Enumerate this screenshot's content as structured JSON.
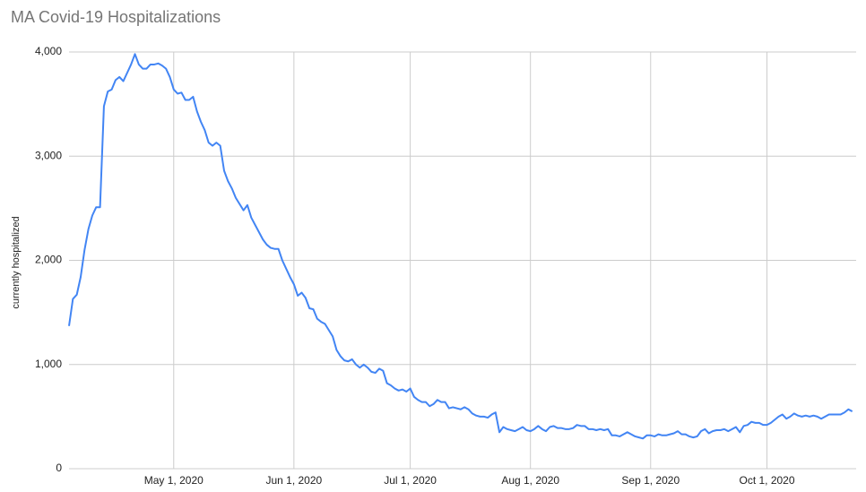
{
  "chart_data": {
    "type": "line",
    "title": "MA Covid-19 Hospitalizations",
    "y_label": "currently hospitalized",
    "x": [
      "2020-04-04",
      "2020-04-05",
      "2020-04-06",
      "2020-04-07",
      "2020-04-08",
      "2020-04-09",
      "2020-04-10",
      "2020-04-11",
      "2020-04-12",
      "2020-04-13",
      "2020-04-14",
      "2020-04-15",
      "2020-04-16",
      "2020-04-17",
      "2020-04-18",
      "2020-04-19",
      "2020-04-20",
      "2020-04-21",
      "2020-04-22",
      "2020-04-23",
      "2020-04-24",
      "2020-04-25",
      "2020-04-26",
      "2020-04-27",
      "2020-04-28",
      "2020-04-29",
      "2020-04-30",
      "2020-05-01",
      "2020-05-02",
      "2020-05-03",
      "2020-05-04",
      "2020-05-05",
      "2020-05-06",
      "2020-05-07",
      "2020-05-08",
      "2020-05-09",
      "2020-05-10",
      "2020-05-11",
      "2020-05-12",
      "2020-05-13",
      "2020-05-14",
      "2020-05-15",
      "2020-05-16",
      "2020-05-17",
      "2020-05-18",
      "2020-05-19",
      "2020-05-20",
      "2020-05-21",
      "2020-05-22",
      "2020-05-23",
      "2020-05-24",
      "2020-05-25",
      "2020-05-26",
      "2020-05-27",
      "2020-05-28",
      "2020-05-29",
      "2020-05-30",
      "2020-05-31",
      "2020-06-01",
      "2020-06-02",
      "2020-06-03",
      "2020-06-04",
      "2020-06-05",
      "2020-06-06",
      "2020-06-07",
      "2020-06-08",
      "2020-06-09",
      "2020-06-10",
      "2020-06-11",
      "2020-06-12",
      "2020-06-13",
      "2020-06-14",
      "2020-06-15",
      "2020-06-16",
      "2020-06-17",
      "2020-06-18",
      "2020-06-19",
      "2020-06-20",
      "2020-06-21",
      "2020-06-22",
      "2020-06-23",
      "2020-06-24",
      "2020-06-25",
      "2020-06-26",
      "2020-06-27",
      "2020-06-28",
      "2020-06-29",
      "2020-06-30",
      "2020-07-01",
      "2020-07-02",
      "2020-07-03",
      "2020-07-04",
      "2020-07-05",
      "2020-07-06",
      "2020-07-07",
      "2020-07-08",
      "2020-07-09",
      "2020-07-10",
      "2020-07-11",
      "2020-07-12",
      "2020-07-13",
      "2020-07-14",
      "2020-07-15",
      "2020-07-16",
      "2020-07-17",
      "2020-07-18",
      "2020-07-19",
      "2020-07-20",
      "2020-07-21",
      "2020-07-22",
      "2020-07-23",
      "2020-07-24",
      "2020-07-25",
      "2020-07-26",
      "2020-07-27",
      "2020-07-28",
      "2020-07-29",
      "2020-07-30",
      "2020-07-31",
      "2020-08-01",
      "2020-08-02",
      "2020-08-03",
      "2020-08-04",
      "2020-08-05",
      "2020-08-06",
      "2020-08-07",
      "2020-08-08",
      "2020-08-09",
      "2020-08-10",
      "2020-08-11",
      "2020-08-12",
      "2020-08-13",
      "2020-08-14",
      "2020-08-15",
      "2020-08-16",
      "2020-08-17",
      "2020-08-18",
      "2020-08-19",
      "2020-08-20",
      "2020-08-21",
      "2020-08-22",
      "2020-08-23",
      "2020-08-24",
      "2020-08-25",
      "2020-08-26",
      "2020-08-27",
      "2020-08-28",
      "2020-08-29",
      "2020-08-30",
      "2020-08-31",
      "2020-09-01",
      "2020-09-02",
      "2020-09-03",
      "2020-09-04",
      "2020-09-05",
      "2020-09-06",
      "2020-09-07",
      "2020-09-08",
      "2020-09-09",
      "2020-09-10",
      "2020-09-11",
      "2020-09-12",
      "2020-09-13",
      "2020-09-14",
      "2020-09-15",
      "2020-09-16",
      "2020-09-17",
      "2020-09-18",
      "2020-09-19",
      "2020-09-20",
      "2020-09-21",
      "2020-09-22",
      "2020-09-23",
      "2020-09-24",
      "2020-09-25",
      "2020-09-26",
      "2020-09-27",
      "2020-09-28",
      "2020-09-29",
      "2020-09-30",
      "2020-10-01",
      "2020-10-02",
      "2020-10-03",
      "2020-10-04",
      "2020-10-05",
      "2020-10-06",
      "2020-10-07",
      "2020-10-08",
      "2020-10-09",
      "2020-10-10",
      "2020-10-11",
      "2020-10-12",
      "2020-10-13",
      "2020-10-14",
      "2020-10-15",
      "2020-10-16",
      "2020-10-17",
      "2020-10-18",
      "2020-10-19",
      "2020-10-20",
      "2020-10-21",
      "2020-10-22",
      "2020-10-23"
    ],
    "values": [
      1370,
      1630,
      1670,
      1840,
      2100,
      2300,
      2430,
      2510,
      2510,
      3480,
      3620,
      3640,
      3730,
      3760,
      3720,
      3800,
      3880,
      3980,
      3880,
      3840,
      3840,
      3880,
      3880,
      3890,
      3870,
      3840,
      3760,
      3640,
      3600,
      3610,
      3540,
      3540,
      3570,
      3430,
      3330,
      3250,
      3130,
      3100,
      3130,
      3100,
      2860,
      2760,
      2690,
      2600,
      2540,
      2480,
      2530,
      2410,
      2340,
      2270,
      2200,
      2150,
      2120,
      2110,
      2110,
      2000,
      1920,
      1840,
      1770,
      1660,
      1690,
      1640,
      1540,
      1530,
      1440,
      1410,
      1390,
      1330,
      1270,
      1140,
      1080,
      1040,
      1030,
      1050,
      1000,
      970,
      1000,
      970,
      930,
      920,
      960,
      940,
      820,
      800,
      770,
      750,
      760,
      740,
      770,
      690,
      660,
      640,
      640,
      600,
      620,
      660,
      640,
      640,
      580,
      590,
      580,
      570,
      590,
      570,
      530,
      510,
      500,
      500,
      490,
      520,
      540,
      350,
      400,
      380,
      370,
      360,
      380,
      400,
      370,
      360,
      380,
      410,
      380,
      360,
      400,
      410,
      390,
      390,
      380,
      380,
      390,
      420,
      410,
      410,
      380,
      380,
      370,
      380,
      370,
      380,
      320,
      320,
      310,
      330,
      350,
      330,
      310,
      300,
      290,
      320,
      320,
      310,
      330,
      320,
      320,
      330,
      340,
      360,
      330,
      330,
      310,
      300,
      310,
      360,
      380,
      340,
      360,
      370,
      370,
      380,
      360,
      380,
      400,
      350,
      410,
      420,
      450,
      440,
      440,
      420,
      420,
      440,
      470,
      500,
      520,
      480,
      500,
      530,
      510,
      500,
      510,
      500,
      510,
      500,
      480,
      500,
      520,
      520,
      520,
      520,
      540,
      570,
      550
    ],
    "color": "#4285f4",
    "xlim": [
      "2020-04-04",
      "2020-10-24"
    ],
    "xticks": [
      {
        "value": "2020-05-01",
        "label": "May 1, 2020"
      },
      {
        "value": "2020-06-01",
        "label": "Jun 1, 2020"
      },
      {
        "value": "2020-07-01",
        "label": "Jul 1, 2020"
      },
      {
        "value": "2020-08-01",
        "label": "Aug 1, 2020"
      },
      {
        "value": "2020-09-01",
        "label": "Sep 1, 2020"
      },
      {
        "value": "2020-10-01",
        "label": "Oct 1, 2020"
      }
    ],
    "ylim": [
      0,
      4000
    ],
    "yticks": [
      0,
      {
        "value": 1000,
        "label": "1,000"
      },
      {
        "value": 2000,
        "label": "2,000"
      },
      {
        "value": 3000,
        "label": "3,000"
      },
      {
        "value": 4000,
        "label": "4,000"
      }
    ],
    "grid": true
  }
}
